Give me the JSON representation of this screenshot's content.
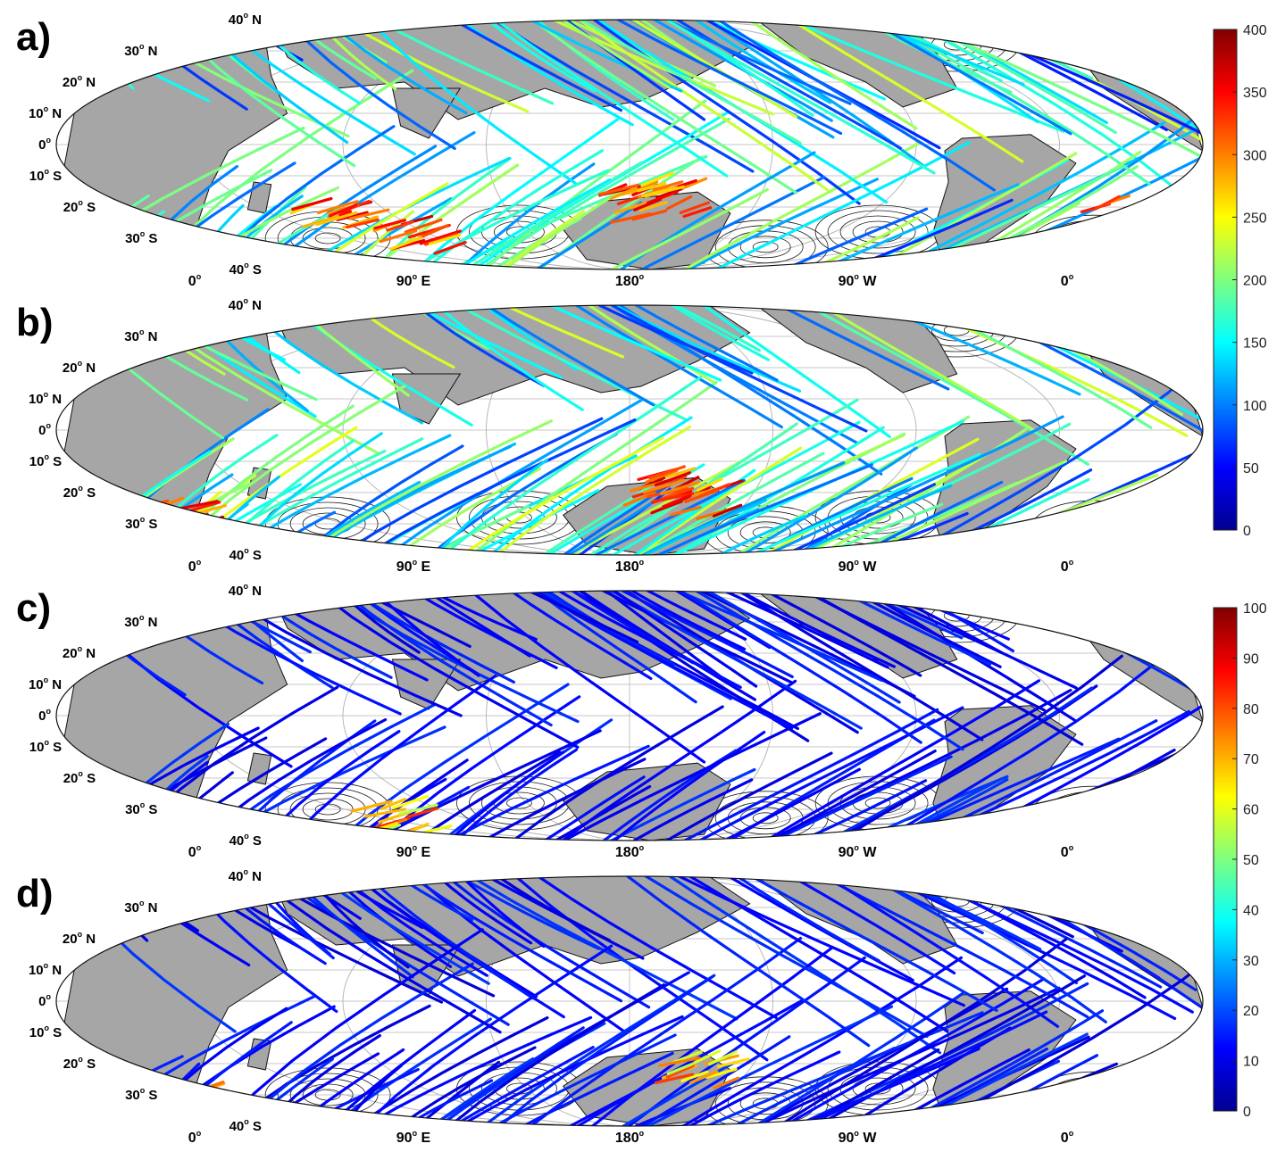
{
  "figure": {
    "panels": [
      {
        "letter": "a)",
        "colorbar": "top"
      },
      {
        "letter": "b)",
        "colorbar": "top"
      },
      {
        "letter": "c)",
        "colorbar": "bottom"
      },
      {
        "letter": "d)",
        "colorbar": "bottom"
      }
    ],
    "lat_labels": [
      {
        "deg": "40",
        "hem": "N"
      },
      {
        "deg": "30",
        "hem": "N"
      },
      {
        "deg": "20",
        "hem": "N"
      },
      {
        "deg": "10",
        "hem": "N"
      },
      {
        "deg": "0",
        "hem": ""
      },
      {
        "deg": "10",
        "hem": "S"
      },
      {
        "deg": "20",
        "hem": "S"
      },
      {
        "deg": "30",
        "hem": "S"
      },
      {
        "deg": "40",
        "hem": "S"
      }
    ],
    "lon_labels": [
      {
        "deg": "0",
        "hem": ""
      },
      {
        "deg": "90",
        "hem": "E"
      },
      {
        "deg": "180",
        "hem": ""
      },
      {
        "deg": "90",
        "hem": "W"
      },
      {
        "deg": "0",
        "hem": ""
      }
    ],
    "colorbar_top": {
      "min": 0,
      "max": 400,
      "ticks": [
        "400",
        "350",
        "300",
        "250",
        "200",
        "150",
        "100",
        "50",
        "0"
      ]
    },
    "colorbar_bottom": {
      "min": 0,
      "max": 100,
      "ticks": [
        "100",
        "90",
        "80",
        "70",
        "60",
        "50",
        "40",
        "30",
        "20",
        "10",
        "0"
      ]
    },
    "colors": {
      "land": "#a6a6a6",
      "ocean": "#ffffff",
      "contour": "#1a1a1a",
      "grid": "#b4b4b4"
    },
    "colormap": "jet"
  }
}
